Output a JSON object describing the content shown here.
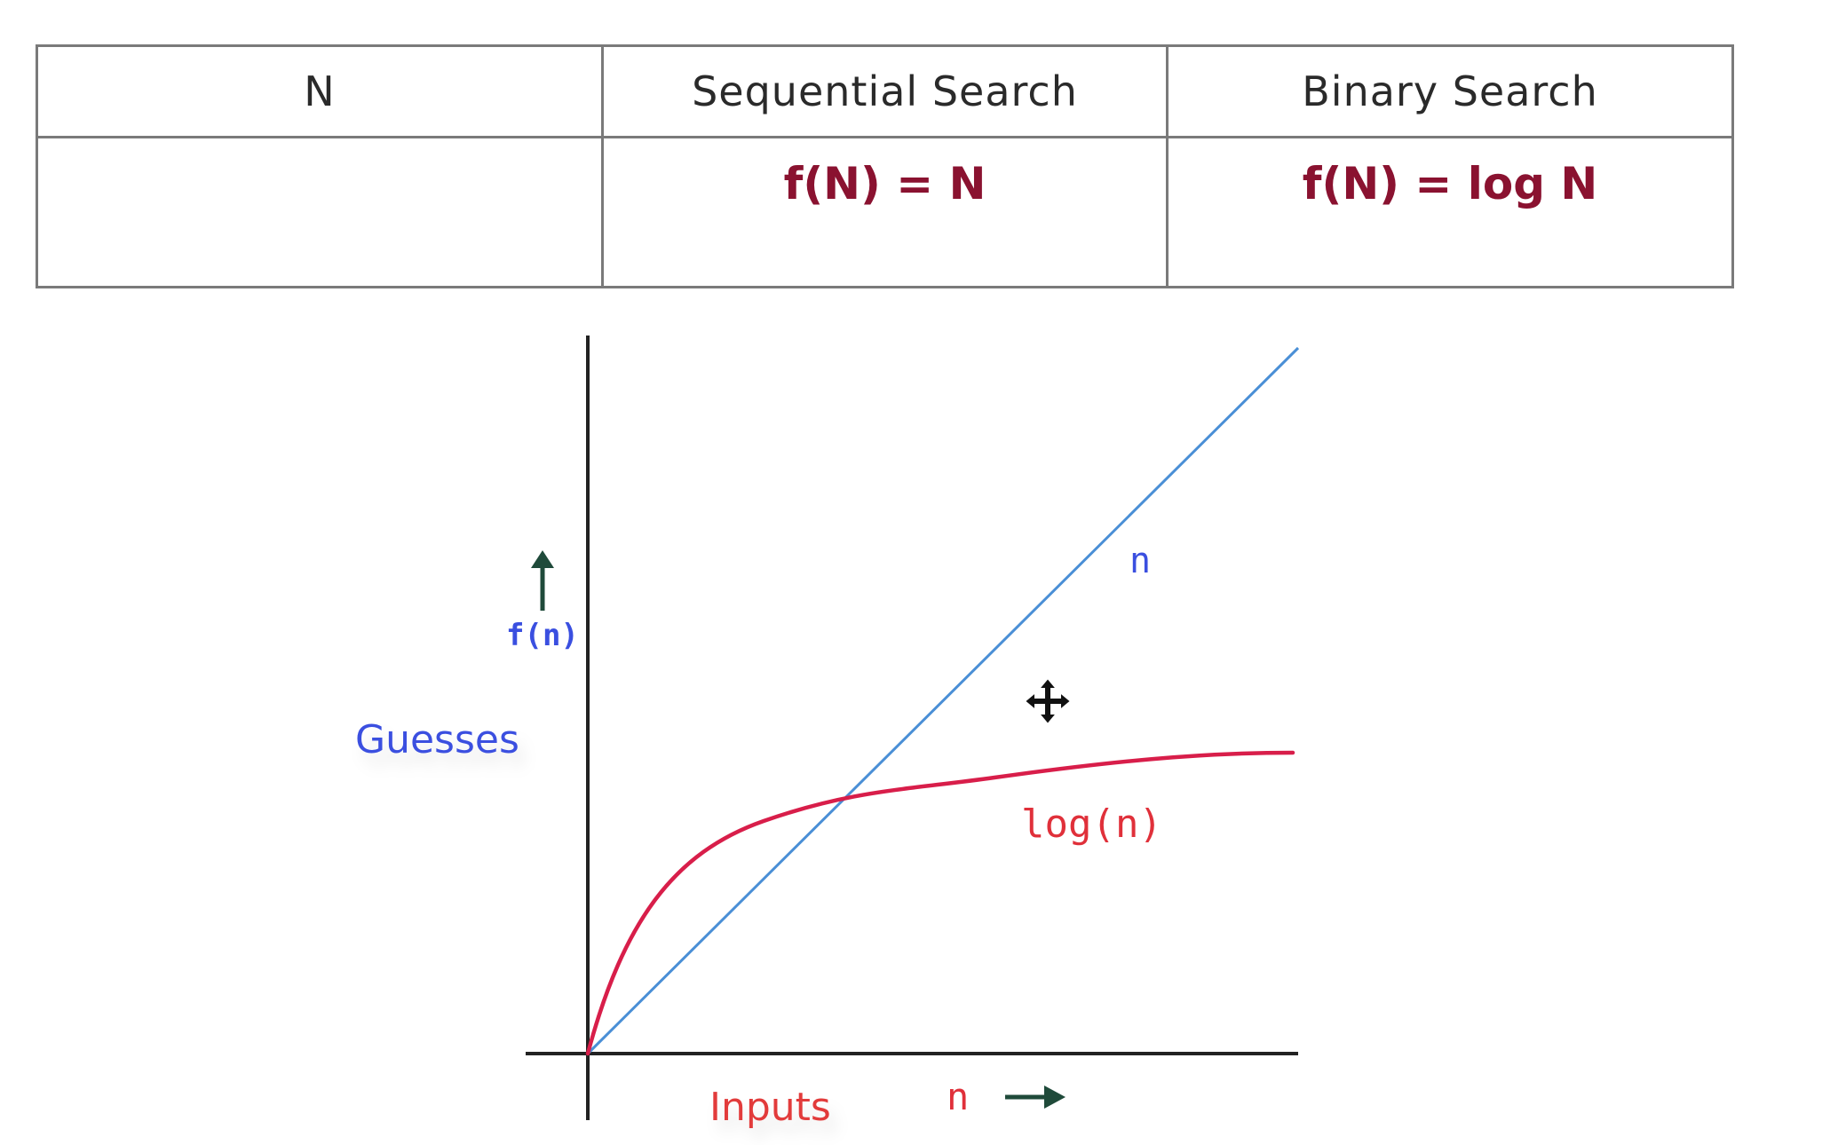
{
  "table": {
    "headers": [
      "N",
      "Sequential Search",
      "Binary Search"
    ],
    "row": [
      "",
      "f(N) = N",
      "f(N) = log N"
    ]
  },
  "chart_data": {
    "type": "line",
    "ylabel": "Guesses",
    "y_axis_function_label": "f(n)",
    "xlabel": "Inputs",
    "x_axis_variable_label": "n",
    "series": [
      {
        "name": "n",
        "color": "#4a8fd6",
        "points": [
          [
            0,
            0
          ],
          [
            1,
            1
          ]
        ]
      },
      {
        "name": "log(n)",
        "color": "#d81e4a"
      }
    ],
    "colors": {
      "ylabel": "#3a4fe0",
      "xlabel": "#e23b3b",
      "series_n_label": "#3a4fe0",
      "series_log_label": "#e0303a",
      "fn_label": "#3a4fe0",
      "arrows": "#1f4a3a",
      "axes": "#222222"
    }
  }
}
